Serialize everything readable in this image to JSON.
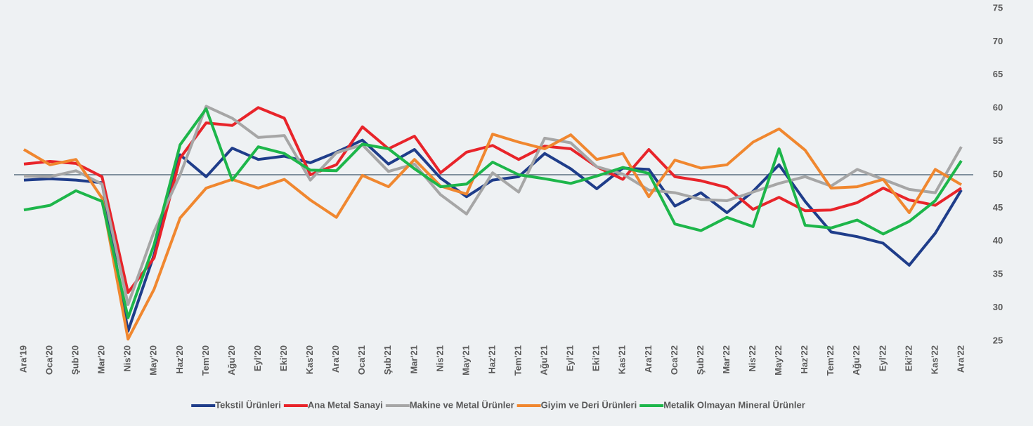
{
  "chart_data": {
    "type": "line",
    "categories": [
      "Ara'19",
      "Oca'20",
      "Şub'20",
      "Mar'20",
      "Nis'20",
      "May'20",
      "Haz'20",
      "Tem'20",
      "Ağu'20",
      "Eyl'20",
      "Eki'20",
      "Kas'20",
      "Ara'20",
      "Oca'21",
      "Şub'21",
      "Mar'21",
      "Nis'21",
      "May'21",
      "Haz'21",
      "Tem'21",
      "Ağu'21",
      "Eyl'21",
      "Eki'21",
      "Kas'21",
      "Ara'21",
      "Oca'22",
      "Şub'22",
      "Mar'22",
      "Nis'22",
      "May'22",
      "Haz'22",
      "Tem'22",
      "Ağu'22",
      "Eyl'22",
      "Eki'22",
      "Kas'22",
      "Ara'22"
    ],
    "series": [
      {
        "name": "Tekstil Ürünleri",
        "color": "#1f3d8a",
        "values": [
          49.2,
          49.4,
          49.2,
          48.8,
          26.5,
          38,
          53,
          49.7,
          54,
          52.3,
          52.8,
          51.8,
          53.4,
          55.2,
          51.6,
          53.8,
          49.5,
          46.7,
          49.2,
          49.7,
          53.2,
          50.9,
          47.9,
          51,
          50.8,
          45.3,
          47.3,
          44.3,
          47.5,
          51.5,
          46,
          41.4,
          40.7,
          39.7,
          36.4,
          41.2,
          47.7
        ]
      },
      {
        "name": "Ana Metal Sanayi",
        "color": "#e8242a",
        "values": [
          51.6,
          52,
          51.7,
          49.7,
          32.3,
          37.5,
          52.5,
          57.8,
          57.4,
          60.1,
          58.5,
          50,
          51.5,
          57.2,
          53.9,
          55.8,
          50.3,
          53.4,
          54.4,
          52.3,
          54.3,
          53.9,
          51.2,
          49.3,
          53.8,
          49.7,
          49.1,
          48.1,
          44.8,
          46.6,
          44.6,
          44.7,
          45.8,
          48,
          46.2,
          45.4,
          48
        ]
      },
      {
        "name": "Makine ve Metal Ürünler",
        "color": "#a6a6a6",
        "values": [
          49.8,
          49.7,
          50.6,
          48.6,
          30.5,
          41.5,
          50,
          60.3,
          58.5,
          55.6,
          55.9,
          49.2,
          53.3,
          54.5,
          50.5,
          51.6,
          47,
          44.1,
          50.3,
          47.4,
          55.5,
          54.8,
          51.2,
          50.1,
          47.7,
          47.3,
          46.3,
          46.1,
          47.4,
          48.7,
          49.7,
          48.3,
          50.8,
          49.3,
          47.8,
          47.3,
          54.2
        ]
      },
      {
        "name": "Giyim ve Deri Ürünleri",
        "color": "#f0872f",
        "values": [
          53.8,
          51.5,
          52.3,
          46.5,
          25.3,
          32.8,
          43.5,
          48,
          49.3,
          48,
          49.3,
          46.2,
          43.6,
          49.9,
          48.2,
          52.3,
          48.3,
          47.1,
          56.1,
          54.9,
          53.9,
          56,
          52.3,
          53.2,
          46.7,
          52.2,
          51,
          51.5,
          54.9,
          56.9,
          53.7,
          48,
          48.2,
          49.3,
          44.3,
          50.8,
          48.5
        ]
      },
      {
        "name": "Metalik Olmayan Mineral Ürünler",
        "color": "#1db64a",
        "values": [
          44.7,
          45.4,
          47.6,
          46,
          28.5,
          39.5,
          54.5,
          59.9,
          49.2,
          54.2,
          53.2,
          50.7,
          50.6,
          54.6,
          53.9,
          50.9,
          48.2,
          48.6,
          51.9,
          50,
          49.4,
          48.7,
          49.8,
          51.1,
          50.2,
          42.6,
          41.6,
          43.6,
          42.2,
          53.9,
          42.4,
          42,
          43.2,
          41.1,
          43,
          46.1,
          52.1
        ]
      }
    ],
    "ylim": [
      25,
      75
    ],
    "yticks": [
      25,
      30,
      35,
      40,
      45,
      50,
      55,
      60,
      65,
      70,
      75
    ],
    "reference_line": 50,
    "y_axis_side": "right",
    "legend": "bottom"
  }
}
